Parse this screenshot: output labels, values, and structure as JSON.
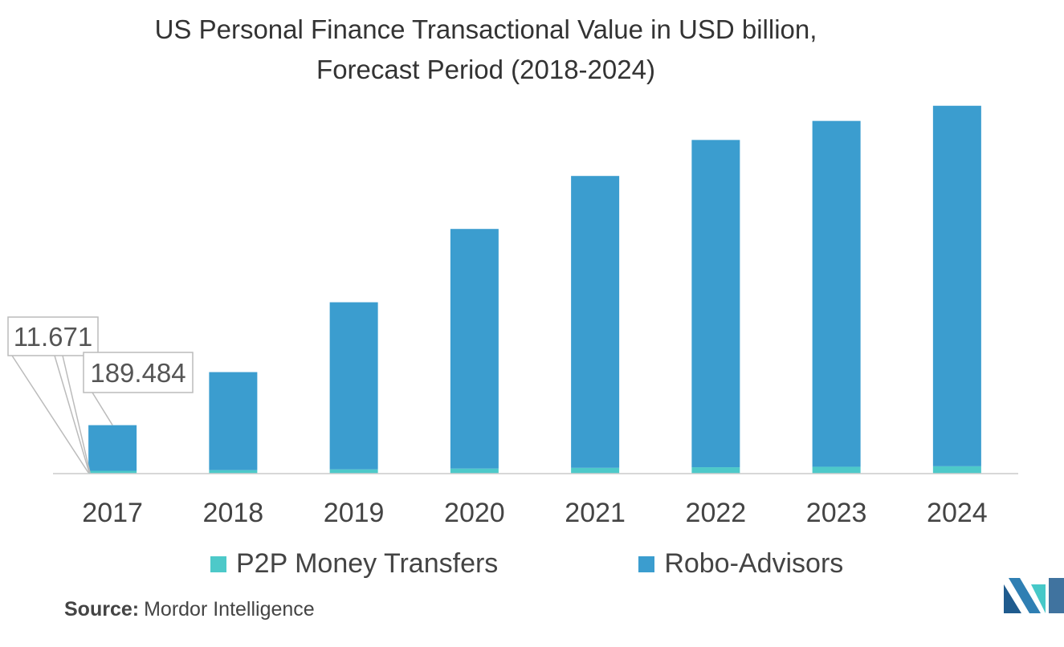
{
  "chart_data": {
    "type": "bar",
    "stacked": true,
    "title": "US Personal Finance Transactional Value in USD billion,",
    "subtitle": "Forecast Period (2018-2024)",
    "categories": [
      "2017",
      "2018",
      "2019",
      "2020",
      "2021",
      "2022",
      "2023",
      "2024"
    ],
    "series": [
      {
        "name": "P2P Money Transfers",
        "color": "#4dc9c9",
        "values": [
          11.671,
          14.5,
          17.5,
          21,
          24,
          26.5,
          28.5,
          30.5
        ]
      },
      {
        "name": "Robo-Advisors",
        "color": "#3b9dcf",
        "values": [
          189.484,
          407,
          694,
          995,
          1212,
          1359,
          1436,
          1497
        ]
      }
    ],
    "data_labels": [
      {
        "category": "2017",
        "series": "P2P Money Transfers",
        "text": "11.671"
      },
      {
        "category": "2017",
        "series": "Robo-Advisors",
        "text": "189.484"
      }
    ],
    "ylim": [
      0,
      1600
    ],
    "grid": false,
    "legend_position": "bottom"
  },
  "source": {
    "label": "Source:",
    "text": "Mordor Intelligence"
  },
  "logo": {
    "icon": "mordor-intelligence-logo-icon",
    "colors": [
      "#1f5b8e",
      "#46c8c8"
    ]
  }
}
